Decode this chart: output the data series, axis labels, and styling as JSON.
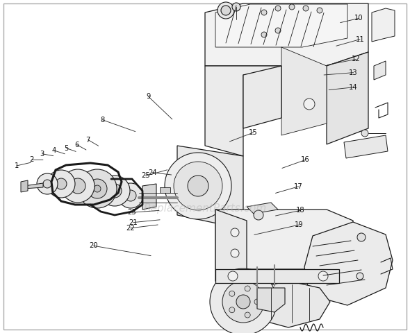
{
  "bg_color": "#ffffff",
  "border_color": "#aaaaaa",
  "line_color": "#1a1a1a",
  "label_color": "#111111",
  "watermark": "ReplacementParts.com",
  "watermark_color": "#bbbbbb",
  "watermark_alpha": 0.55,
  "figsize": [
    5.9,
    4.8
  ],
  "dpi": 100,
  "label_positions": {
    "1": [
      0.04,
      0.498,
      0.075,
      0.488
    ],
    "2": [
      0.077,
      0.48,
      0.105,
      0.48
    ],
    "3": [
      0.103,
      0.462,
      0.13,
      0.468
    ],
    "4": [
      0.132,
      0.452,
      0.158,
      0.462
    ],
    "5": [
      0.162,
      0.445,
      0.185,
      0.455
    ],
    "6": [
      0.188,
      0.435,
      0.21,
      0.45
    ],
    "7": [
      0.215,
      0.42,
      0.24,
      0.438
    ],
    "8": [
      0.25,
      0.36,
      0.33,
      0.395
    ],
    "9": [
      0.362,
      0.29,
      0.42,
      0.358
    ],
    "10": [
      0.875,
      0.055,
      0.83,
      0.068
    ],
    "11": [
      0.878,
      0.118,
      0.82,
      0.138
    ],
    "12": [
      0.868,
      0.178,
      0.798,
      0.195
    ],
    "13": [
      0.862,
      0.218,
      0.79,
      0.225
    ],
    "14": [
      0.862,
      0.262,
      0.802,
      0.27
    ],
    "15": [
      0.618,
      0.398,
      0.56,
      0.425
    ],
    "16": [
      0.745,
      0.48,
      0.688,
      0.505
    ],
    "17": [
      0.728,
      0.56,
      0.672,
      0.58
    ],
    "18": [
      0.732,
      0.632,
      0.672,
      0.648
    ],
    "19": [
      0.73,
      0.675,
      0.62,
      0.705
    ],
    "20": [
      0.228,
      0.738,
      0.368,
      0.768
    ],
    "21": [
      0.325,
      0.668,
      0.39,
      0.66
    ],
    "22": [
      0.318,
      0.685,
      0.385,
      0.675
    ],
    "23": [
      0.322,
      0.638,
      0.388,
      0.632
    ],
    "24": [
      0.372,
      0.518,
      0.418,
      0.525
    ],
    "25": [
      0.355,
      0.528,
      0.408,
      0.51
    ]
  }
}
